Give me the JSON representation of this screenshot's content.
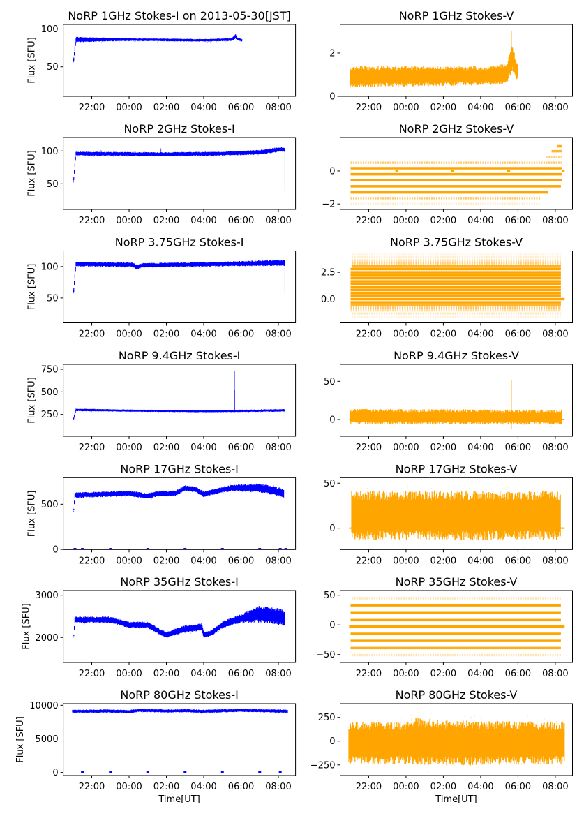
{
  "chart_data": [
    {
      "type": "scatter",
      "title": "NoRP 1GHz Stokes-I on 2013-05-30[JST]",
      "ylabel": "Flux [SFU]",
      "xlabel": "",
      "color": "#0000ff",
      "ylim": [
        11,
        106
      ],
      "yticks": [
        50,
        100
      ],
      "profile": [
        [
          -2.97,
          58,
          2
        ],
        [
          -2.85,
          86,
          3
        ],
        [
          -2,
          86,
          2.5
        ],
        [
          0,
          86,
          1.5
        ],
        [
          4,
          85,
          1.5
        ],
        [
          5.5,
          86,
          1.5
        ],
        [
          5.7,
          90,
          2.5
        ],
        [
          5.8,
          87,
          1.5
        ],
        [
          6.05,
          85,
          1.5
        ]
      ],
      "spikes": [
        [
          5.7,
          94
        ]
      ]
    },
    {
      "type": "scatter",
      "title": "NoRP 1GHz Stokes-V",
      "ylabel": "",
      "xlabel": "",
      "color": "#ffa500",
      "ylim": [
        0,
        3.32
      ],
      "yticks": [
        0,
        2
      ],
      "profile": [
        [
          -2.97,
          0.9,
          0.4
        ],
        [
          4.5,
          0.95,
          0.35
        ],
        [
          5.4,
          1.05,
          0.4
        ],
        [
          5.7,
          1.8,
          0.5
        ],
        [
          5.9,
          1.2,
          0.4
        ],
        [
          6.0,
          1.2,
          0.3
        ]
      ],
      "levels": [
        {
          "y": 0,
          "t0": 6.0,
          "t1": 8.5,
          "op": 1,
          "w": 2
        }
      ],
      "spikes": [
        [
          5.65,
          3.0
        ]
      ]
    },
    {
      "type": "scatter",
      "title": "NoRP 2GHz Stokes-I",
      "ylabel": "Flux [SFU]",
      "xlabel": "",
      "color": "#0000ff",
      "ylim": [
        11,
        120.5
      ],
      "yticks": [
        50,
        100
      ],
      "profile": [
        [
          -2.97,
          55,
          2
        ],
        [
          -2.85,
          96,
          2.5
        ],
        [
          1.7,
          95,
          2.5
        ],
        [
          5,
          96,
          2.5
        ],
        [
          7,
          98,
          3
        ],
        [
          8.0,
          102,
          3
        ],
        [
          8.35,
          102,
          3
        ]
      ],
      "drops": [
        [
          8.35,
          100,
          40
        ]
      ],
      "spikes": [
        [
          -1.5,
          101
        ],
        [
          1.7,
          104
        ],
        [
          2.8,
          100
        ]
      ]
    },
    {
      "type": "scatter",
      "title": "NoRP 2GHz Stokes-V",
      "ylabel": "",
      "xlabel": "",
      "color": "#ffa500",
      "ylim": [
        -2.33,
        2.03
      ],
      "yticks": [
        -2,
        0
      ],
      "levels": [
        {
          "y": 0.5,
          "t0": -2.97,
          "t1": 8.35,
          "op": 0.55
        },
        {
          "y": 0.17,
          "t0": -2.97,
          "t1": 8.35,
          "op": 1
        },
        {
          "y": -0.2,
          "t0": -2.97,
          "t1": 8.35,
          "op": 1
        },
        {
          "y": -0.55,
          "t0": -2.97,
          "t1": 8.35,
          "op": 1
        },
        {
          "y": -0.93,
          "t0": -2.97,
          "t1": 8.3,
          "op": 1
        },
        {
          "y": -1.3,
          "t0": -2.97,
          "t1": 7.6,
          "op": 1
        },
        {
          "y": -1.65,
          "t0": -2.97,
          "t1": 7.2,
          "op": 0.6
        },
        {
          "y": -2.0,
          "t0": -2.97,
          "t1": 7.2,
          "op": 0.2
        },
        {
          "y": 0.85,
          "t0": 7.5,
          "t1": 8.35,
          "op": 0.5
        },
        {
          "y": 1.2,
          "t0": 7.8,
          "t1": 8.35,
          "op": 0.8
        },
        {
          "y": 1.5,
          "t0": 8.1,
          "t1": 8.35,
          "op": 0.9
        },
        {
          "y": 0,
          "t0": 8.35,
          "t1": 8.5,
          "op": 1
        }
      ],
      "dots": [
        [
          -0.5,
          0
        ],
        [
          2.5,
          0
        ],
        [
          5.5,
          0
        ]
      ]
    },
    {
      "type": "scatter",
      "title": "NoRP 3.75GHz Stokes-I",
      "ylabel": "Flux [SFU]",
      "xlabel": "",
      "color": "#0000ff",
      "ylim": [
        10.4,
        124.9
      ],
      "yticks": [
        50,
        100
      ],
      "profile": [
        [
          -2.97,
          60,
          3
        ],
        [
          -2.85,
          104,
          3
        ],
        [
          0.2,
          103,
          3
        ],
        [
          0.4,
          99,
          3
        ],
        [
          0.7,
          102,
          3
        ],
        [
          5,
          104,
          3
        ],
        [
          8,
          106,
          4
        ],
        [
          8.35,
          106,
          4
        ]
      ],
      "drops": [
        [
          8.35,
          104,
          58
        ]
      ]
    },
    {
      "type": "scatter",
      "title": "NoRP 3.75GHz Stokes-V",
      "ylabel": "",
      "xlabel": "",
      "color": "#ffa500",
      "ylim": [
        -2.22,
        4.5
      ],
      "yticks": [
        0.0,
        2.5
      ],
      "ytick_labels": [
        "0.0",
        "2.5"
      ],
      "levels": [
        {
          "y": -1.65,
          "t0": -2.9,
          "t1": 8.3,
          "op": 0.15
        },
        {
          "y": -1.35,
          "t0": -2.9,
          "t1": 8.3,
          "op": 0.25
        },
        {
          "y": -1.05,
          "t0": -2.97,
          "t1": 8.3,
          "op": 0.4
        },
        {
          "y": -0.8,
          "t0": -2.97,
          "t1": 8.3,
          "op": 0.6
        },
        {
          "y": -0.55,
          "t0": -2.97,
          "t1": 8.3,
          "op": 0.8
        },
        {
          "y": -0.3,
          "t0": -2.97,
          "t1": 8.3,
          "op": 1
        },
        {
          "y": 0,
          "t0": -2.97,
          "t1": 8.5,
          "op": 1
        },
        {
          "y": 0.3,
          "t0": -2.97,
          "t1": 8.3,
          "op": 1
        },
        {
          "y": 0.55,
          "t0": -2.97,
          "t1": 8.3,
          "op": 1
        },
        {
          "y": 0.85,
          "t0": -2.97,
          "t1": 8.3,
          "op": 1
        },
        {
          "y": 1.1,
          "t0": -2.97,
          "t1": 8.3,
          "op": 1
        },
        {
          "y": 1.4,
          "t0": -2.97,
          "t1": 8.3,
          "op": 1
        },
        {
          "y": 1.65,
          "t0": -2.97,
          "t1": 8.3,
          "op": 1
        },
        {
          "y": 1.95,
          "t0": -2.97,
          "t1": 8.3,
          "op": 1
        },
        {
          "y": 2.2,
          "t0": -2.97,
          "t1": 8.3,
          "op": 1
        },
        {
          "y": 2.5,
          "t0": -2.97,
          "t1": 8.3,
          "op": 1
        },
        {
          "y": 2.8,
          "t0": -2.97,
          "t1": 8.3,
          "op": 1
        },
        {
          "y": 3.05,
          "t0": -2.9,
          "t1": 8.3,
          "op": 0.85
        },
        {
          "y": 3.35,
          "t0": -2.9,
          "t1": 8.3,
          "op": 0.55
        },
        {
          "y": 3.6,
          "t0": -2.9,
          "t1": 8.3,
          "op": 0.35
        },
        {
          "y": 3.9,
          "t0": -2.9,
          "t1": 8.3,
          "op": 0.2
        },
        {
          "y": 4.15,
          "t0": -2.9,
          "t1": 8.3,
          "op": 0.12
        }
      ]
    },
    {
      "type": "scatter",
      "title": "NoRP 9.4GHz Stokes-I",
      "ylabel": "Flux [SFU]",
      "xlabel": "",
      "color": "#0000ff",
      "ylim": [
        8,
        804
      ],
      "yticks": [
        250,
        500,
        750
      ],
      "profile": [
        [
          -2.97,
          200,
          10
        ],
        [
          -2.85,
          300,
          12
        ],
        [
          0,
          292,
          10
        ],
        [
          4,
          285,
          10
        ],
        [
          8.35,
          295,
          12
        ]
      ],
      "spikes": [
        [
          5.65,
          520
        ],
        [
          5.65,
          730
        ]
      ],
      "drops": [
        [
          8.35,
          290,
          200
        ]
      ]
    },
    {
      "type": "scatter",
      "title": "NoRP 9.4GHz Stokes-V",
      "ylabel": "",
      "xlabel": "",
      "color": "#ffa500",
      "ylim": [
        -22,
        72.3
      ],
      "yticks": [
        0,
        50
      ],
      "profile": [
        [
          -2.97,
          4,
          8
        ],
        [
          8.35,
          3,
          8
        ]
      ],
      "spikes": [
        [
          5.65,
          52
        ],
        [
          5.65,
          -12
        ]
      ],
      "levels": [
        {
          "y": 0,
          "t0": -3.05,
          "t1": 8.5,
          "op": 1,
          "w": 2
        }
      ]
    },
    {
      "type": "scatter",
      "title": "NoRP 17GHz Stokes-I",
      "ylabel": "Flux [SFU]",
      "xlabel": "",
      "color": "#0000ff",
      "ylim": [
        -2,
        794
      ],
      "yticks": [
        0,
        500
      ],
      "profile": [
        [
          -2.97,
          420,
          8
        ],
        [
          -2.9,
          600,
          25
        ],
        [
          0,
          620,
          25
        ],
        [
          1.0,
          590,
          25
        ],
        [
          1.5,
          615,
          25
        ],
        [
          2.5,
          620,
          25
        ],
        [
          3.0,
          680,
          25
        ],
        [
          3.6,
          660,
          25
        ],
        [
          4.0,
          610,
          25
        ],
        [
          5.0,
          660,
          25
        ],
        [
          5.5,
          680,
          30
        ],
        [
          7.0,
          680,
          40
        ],
        [
          8.0,
          640,
          40
        ],
        [
          8.3,
          620,
          40
        ]
      ],
      "dots": [
        [
          -2.9,
          0
        ],
        [
          -2.5,
          0
        ],
        [
          -1,
          0
        ],
        [
          1,
          0
        ],
        [
          3,
          0
        ],
        [
          5,
          0
        ],
        [
          7,
          0
        ],
        [
          8.1,
          0
        ],
        [
          8.4,
          0
        ]
      ]
    },
    {
      "type": "scatter",
      "title": "NoRP 17GHz Stokes-V",
      "ylabel": "",
      "xlabel": "",
      "color": "#ffa500",
      "ylim": [
        -23.8,
        56.2
      ],
      "yticks": [
        0,
        50
      ],
      "profile": [
        [
          -2.9,
          14,
          22
        ],
        [
          8.3,
          14,
          22
        ]
      ],
      "levels": [
        {
          "y": 0,
          "t0": -3.05,
          "t1": 8.5,
          "op": 1,
          "w": 2
        }
      ]
    },
    {
      "type": "scatter",
      "title": "NoRP 35GHz Stokes-I",
      "ylabel": "Flux [SFU]",
      "xlabel": "",
      "color": "#0000ff",
      "ylim": [
        1410,
        3110
      ],
      "yticks": [
        2000,
        3000
      ],
      "floor": 2000,
      "profile": [
        [
          -2.97,
          2000,
          10
        ],
        [
          -2.9,
          2420,
          60
        ],
        [
          -1,
          2420,
          60
        ],
        [
          0,
          2300,
          60
        ],
        [
          1,
          2300,
          60
        ],
        [
          1.7,
          2120,
          60
        ],
        [
          2,
          2060,
          60
        ],
        [
          3,
          2200,
          70
        ],
        [
          3.9,
          2250,
          70
        ],
        [
          4.0,
          2060,
          60
        ],
        [
          4.4,
          2100,
          60
        ],
        [
          5.0,
          2300,
          70
        ],
        [
          6,
          2450,
          80
        ],
        [
          7,
          2550,
          160
        ],
        [
          8.0,
          2500,
          160
        ],
        [
          8.35,
          2450,
          150
        ]
      ]
    },
    {
      "type": "scatter",
      "title": "NoRP 35GHz Stokes-V",
      "ylabel": "",
      "xlabel": "",
      "color": "#ffa500",
      "ylim": [
        -63.3,
        57.9
      ],
      "yticks": [
        -50,
        0,
        50
      ],
      "levels": [
        {
          "y": 45,
          "t0": -2.9,
          "t1": 8.3,
          "op": 0.3
        },
        {
          "y": 33,
          "t0": -2.97,
          "t1": 8.3,
          "op": 1
        },
        {
          "y": 20,
          "t0": -2.97,
          "t1": 8.3,
          "op": 1
        },
        {
          "y": 8,
          "t0": -2.97,
          "t1": 8.3,
          "op": 1
        },
        {
          "y": -3,
          "t0": -3.05,
          "t1": 8.5,
          "op": 1
        },
        {
          "y": -15,
          "t0": -2.97,
          "t1": 8.3,
          "op": 1
        },
        {
          "y": -27,
          "t0": -2.97,
          "t1": 8.3,
          "op": 1
        },
        {
          "y": -39,
          "t0": -2.97,
          "t1": 8.3,
          "op": 0.9
        },
        {
          "y": -51,
          "t0": -2.9,
          "t1": 8.3,
          "op": 0.3
        }
      ]
    },
    {
      "type": "scatter",
      "title": "NoRP 80GHz Stokes-I",
      "ylabel": "Flux [SFU]",
      "xlabel": "Time[UT]",
      "color": "#0000ff",
      "ylim": [
        -450,
        10240
      ],
      "yticks": [
        0,
        5000,
        10000
      ],
      "profile": [
        [
          -3.0,
          9100,
          200
        ],
        [
          -1,
          9150,
          200
        ],
        [
          0,
          9050,
          200
        ],
        [
          0.5,
          9250,
          200
        ],
        [
          2,
          9150,
          200
        ],
        [
          3,
          9200,
          200
        ],
        [
          4,
          9100,
          200
        ],
        [
          6,
          9250,
          200
        ],
        [
          8.5,
          9100,
          200
        ]
      ],
      "dots": [
        [
          -2.5,
          0
        ],
        [
          -1,
          0
        ],
        [
          1,
          0
        ],
        [
          3,
          0
        ],
        [
          5,
          0
        ],
        [
          7,
          0
        ],
        [
          8.1,
          0
        ]
      ]
    },
    {
      "type": "scatter",
      "title": "NoRP 80GHz Stokes-V",
      "ylabel": "",
      "xlabel": "Time[UT]",
      "color": "#ffa500",
      "ylim": [
        -362,
        395
      ],
      "yticks": [
        -250,
        0,
        250
      ],
      "profile": [
        [
          -3.05,
          -20,
          180
        ],
        [
          0,
          -20,
          180
        ],
        [
          0.4,
          0,
          200
        ],
        [
          3,
          -20,
          190
        ],
        [
          8.5,
          -20,
          180
        ]
      ]
    }
  ],
  "x_axis": {
    "unit": "hours from 00:00 UT",
    "xlim": [
      -3.53,
      8.92
    ],
    "xticks": [
      -2,
      0,
      2,
      4,
      6,
      8
    ],
    "xtick_labels": [
      "22:00",
      "00:00",
      "02:00",
      "04:00",
      "06:00",
      "08:00"
    ]
  }
}
